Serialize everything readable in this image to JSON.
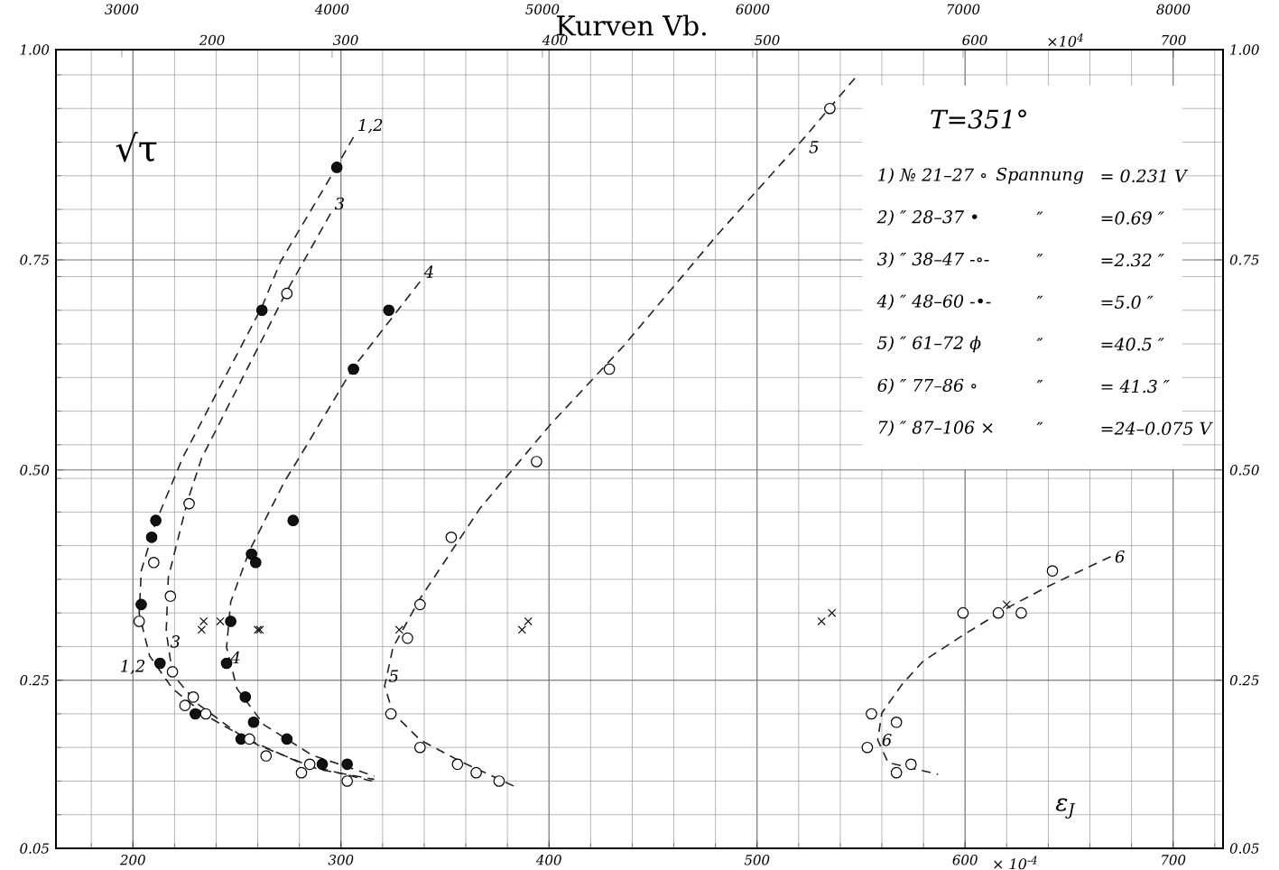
{
  "chart_data": {
    "type": "scatter",
    "title": "Kurven Vb.",
    "xlabel": "ε$_{J}$",
    "ylabel": "√τ",
    "xlim": [
      163,
      724
    ],
    "xticks": [
      200,
      300,
      400,
      500,
      600,
      700
    ],
    "ylim": [
      0.05,
      1.0
    ],
    "yticks": [
      0.05,
      0.25,
      {
        "value": 0.5,
        "label": "0.50"
      },
      0.75,
      {
        "value": 1.0,
        "label": "1.00"
      }
    ],
    "y2lim": [
      0.05,
      1.0
    ],
    "y2ticks": [
      0.05,
      0.25,
      {
        "value": 0.5,
        "label": "0.50"
      },
      0.75,
      {
        "value": 1.0,
        "label": "1.00"
      }
    ],
    "x2lim": [
      2687,
      8236
    ],
    "x2ticks": [
      3000,
      4000,
      5000,
      6000,
      7000,
      8000
    ],
    "grid": true,
    "series": [
      {
        "type": "line",
        "line_style": "dashed",
        "marker": "none",
        "color": "#222222",
        "x": [
          306,
          298,
          271,
          262,
          224,
          211,
          204,
          203,
          208,
          219,
          235,
          260,
          289,
          316
        ],
        "values": [
          0.896,
          0.861,
          0.748,
          0.694,
          0.515,
          0.438,
          0.38,
          0.329,
          0.279,
          0.24,
          0.208,
          0.173,
          0.144,
          0.132
        ]
      },
      {
        "type": "line",
        "line_style": "dashed",
        "marker": "none",
        "color": "#222222",
        "x": [
          295,
          274,
          233,
          226,
          217,
          216,
          219,
          231,
          253,
          282,
          315
        ],
        "values": [
          0.805,
          0.713,
          0.514,
          0.461,
          0.372,
          0.308,
          0.257,
          0.222,
          0.182,
          0.15,
          0.13
        ]
      },
      {
        "type": "line",
        "line_style": "dashed",
        "marker": "none",
        "color": "#222222",
        "x": [
          338,
          306,
          280,
          273,
          256,
          247,
          245,
          250,
          263,
          286,
          316
        ],
        "values": [
          0.724,
          0.622,
          0.515,
          0.487,
          0.404,
          0.343,
          0.289,
          0.24,
          0.197,
          0.161,
          0.136
        ]
      },
      {
        "type": "line",
        "line_style": "dashed",
        "marker": "none",
        "color": "#222222",
        "x": [
          547,
          523,
          481,
          436,
          401,
          367,
          338,
          325,
          321,
          325,
          338,
          357,
          384
        ],
        "values": [
          0.966,
          0.896,
          0.78,
          0.648,
          0.555,
          0.455,
          0.347,
          0.289,
          0.243,
          0.211,
          0.179,
          0.154,
          0.123
        ]
      },
      {
        "type": "line",
        "line_style": "dashed",
        "marker": "none",
        "color": "#222222",
        "x": [
          670,
          641,
          621,
          600,
          580,
          570,
          560,
          558,
          563,
          587
        ],
        "values": [
          0.397,
          0.363,
          0.337,
          0.305,
          0.273,
          0.246,
          0.211,
          0.179,
          0.152,
          0.138
        ]
      },
      {
        "marker": "circle",
        "color": "#ffffff",
        "x": [
          210,
          203,
          225,
          264,
          281,
          303
        ],
        "values": [
          0.39,
          0.32,
          0.22,
          0.16,
          0.14,
          0.13
        ]
      },
      {
        "marker": "circle",
        "color": "#111111",
        "x": [
          298,
          262,
          211,
          209,
          204,
          213,
          230,
          252
        ],
        "values": [
          0.86,
          0.69,
          0.44,
          0.42,
          0.34,
          0.27,
          0.21,
          0.18
        ]
      },
      {
        "marker": "circle",
        "color": "#ffffff",
        "x": [
          274,
          227,
          218,
          219,
          229,
          235,
          256,
          285
        ],
        "values": [
          0.71,
          0.46,
          0.35,
          0.26,
          0.23,
          0.21,
          0.18,
          0.15
        ]
      },
      {
        "marker": "circle",
        "color": "#111111",
        "x": [
          323,
          306,
          277,
          257,
          259,
          247,
          245,
          254,
          258,
          274,
          291,
          303
        ],
        "values": [
          0.69,
          0.62,
          0.44,
          0.4,
          0.39,
          0.32,
          0.27,
          0.23,
          0.2,
          0.18,
          0.15,
          0.15
        ]
      },
      {
        "marker": "circle",
        "color": "#ffffff",
        "x": [
          535,
          429,
          394,
          353,
          338,
          332,
          324,
          338,
          356,
          365,
          376
        ],
        "values": [
          0.93,
          0.62,
          0.51,
          0.42,
          0.34,
          0.3,
          0.21,
          0.17,
          0.15,
          0.14,
          0.13
        ]
      },
      {
        "marker": "circle",
        "color": "#ffffff",
        "x": [
          642,
          599,
          616,
          627,
          555,
          567,
          553,
          574,
          567
        ],
        "values": [
          0.38,
          0.33,
          0.33,
          0.33,
          0.21,
          0.2,
          0.17,
          0.15,
          0.14
        ]
      },
      {
        "marker": "cross",
        "color": "#111111",
        "x": [
          234,
          233,
          242,
          260,
          261,
          328,
          387,
          390,
          531,
          536,
          620
        ],
        "values": [
          0.32,
          0.31,
          0.32,
          0.31,
          0.31,
          0.31,
          0.31,
          0.32,
          0.32,
          0.33,
          0.34
        ]
      }
    ],
    "annotations": [
      "T=351°",
      "1)  № 21–27 ∘",
      "Spannung",
      "= 0.231 V",
      "2)  ″ 28–37 •",
      "″",
      "=0.69 ″",
      "3)  ″ 38–47 -∘-",
      "″",
      "=2.32 ″",
      "4)  ″ 48–60 -•-",
      "″",
      "=5.0 ″",
      "5)  ″ 61–72 ϕ",
      "″",
      "=40.5 ″",
      "6)  ″ 77–86 ∘",
      "″",
      "= 41.3 ″",
      "7)  ″ 87–106 ×",
      "″",
      "=24–0.075 V",
      "× 10$^{-4}$",
      "×10$^{4}$",
      "200",
      "300",
      "400",
      "500",
      "600",
      "700",
      {
        "text": "1,2",
        "x": 306,
        "y": 0.896
      },
      {
        "text": "1,2",
        "x": 208,
        "y": 0.279
      },
      {
        "text": "3",
        "x": 295,
        "y": 0.805
      },
      {
        "text": "3",
        "x": 216,
        "y": 0.308
      },
      {
        "text": "4",
        "x": 338,
        "y": 0.724
      },
      {
        "text": "4",
        "x": 245,
        "y": 0.289
      },
      {
        "text": "5",
        "x": 523,
        "y": 0.896
      },
      {
        "text": "5",
        "x": 321,
        "y": 0.243
      },
      {
        "text": "6",
        "x": 670,
        "y": 0.397
      },
      {
        "text": "6",
        "x": 558,
        "y": 0.179
      }
    ]
  }
}
